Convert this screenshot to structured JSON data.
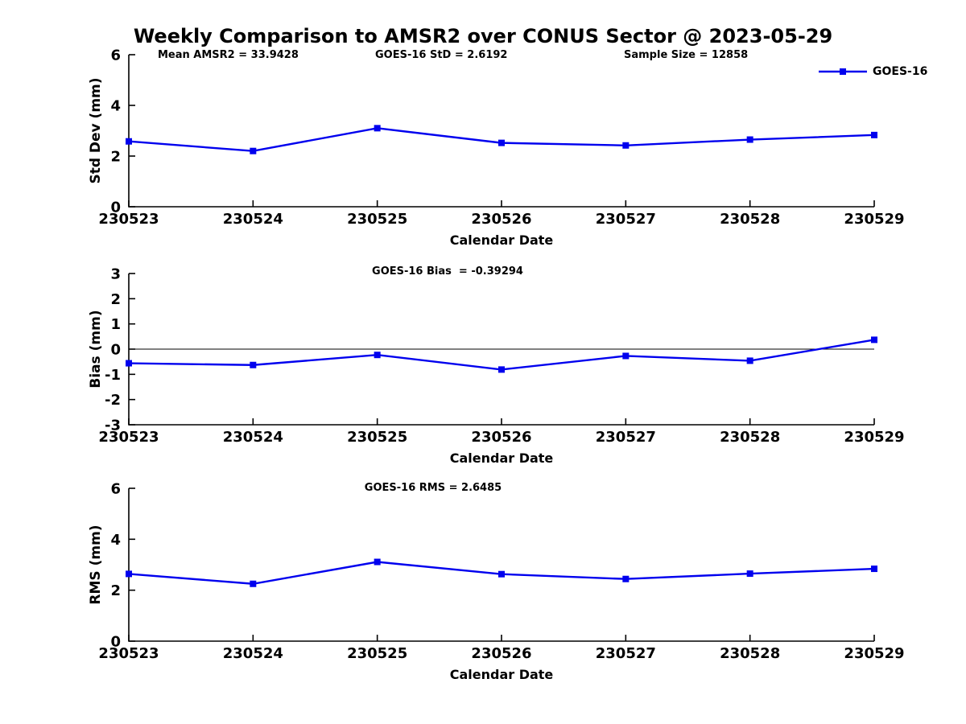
{
  "title": "Weekly Comparison to AMSR2 over CONUS Sector @ 2023-05-29",
  "header_stats": [
    {
      "label": "Mean AMSR2 = 33.9428"
    },
    {
      "label": "GOES-16 StD = 2.6192"
    },
    {
      "label": "Sample Size = 12858"
    }
  ],
  "legend": {
    "label": "GOES-16",
    "line_color": "#0000EE"
  },
  "chart_data": [
    {
      "type": "line",
      "panel": "std-dev",
      "categories": [
        "230523",
        "230524",
        "230525",
        "230526",
        "230527",
        "230528",
        "230529"
      ],
      "series": [
        {
          "name": "GOES-16",
          "color": "#0000EE",
          "values": [
            2.58,
            2.2,
            3.1,
            2.52,
            2.42,
            2.65,
            2.83
          ]
        }
      ],
      "xlabel": "Calendar Date",
      "ylabel": "Std Dev (mm)",
      "ylim": [
        0,
        6
      ],
      "yticks": [
        0,
        2,
        4,
        6
      ],
      "grid": false,
      "annotation": "",
      "zero_line": false,
      "legend_position": "top-right-outside"
    },
    {
      "type": "line",
      "panel": "bias",
      "categories": [
        "230523",
        "230524",
        "230525",
        "230526",
        "230527",
        "230528",
        "230529"
      ],
      "series": [
        {
          "name": "GOES-16",
          "color": "#0000EE",
          "values": [
            -0.56,
            -0.63,
            -0.23,
            -0.81,
            -0.27,
            -0.46,
            0.37
          ]
        }
      ],
      "xlabel": "Calendar Date",
      "ylabel": "Bias (mm)",
      "ylim": [
        -3,
        3
      ],
      "yticks": [
        -3,
        -2,
        -1,
        0,
        1,
        2,
        3
      ],
      "grid": false,
      "annotation": "GOES-16 Bias  = -0.39294",
      "zero_line": true
    },
    {
      "type": "line",
      "panel": "rms",
      "categories": [
        "230523",
        "230524",
        "230525",
        "230526",
        "230527",
        "230528",
        "230529"
      ],
      "series": [
        {
          "name": "GOES-16",
          "color": "#0000EE",
          "values": [
            2.64,
            2.25,
            3.11,
            2.63,
            2.44,
            2.65,
            2.84
          ]
        }
      ],
      "xlabel": "Calendar Date",
      "ylabel": "RMS (mm)",
      "ylim": [
        0,
        6
      ],
      "yticks": [
        0,
        2,
        4,
        6
      ],
      "grid": false,
      "annotation": "GOES-16 RMS = 2.6485",
      "zero_line": false
    }
  ]
}
